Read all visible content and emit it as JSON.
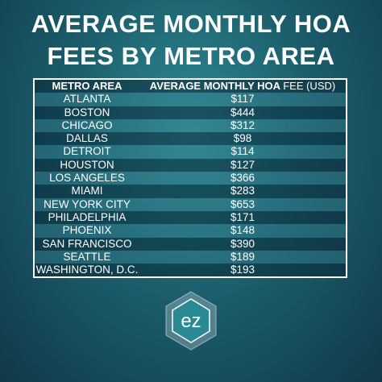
{
  "header": {
    "title_lines": [
      "AVERAGE MONTHLY HOA",
      "FEES BY METRO AREA"
    ]
  },
  "table": {
    "columns": [
      "METRO AREA",
      [
        "AVERAGE MONTHLY HOA",
        "FEE (USD)"
      ]
    ],
    "rows": [
      [
        "ATLANTA",
        "$117"
      ],
      [
        "BOSTON",
        "$444"
      ],
      [
        "CHICAGO",
        "$312"
      ],
      [
        "DALLAS",
        "$98"
      ],
      [
        "DETROIT",
        "$114"
      ],
      [
        "HOUSTON",
        "$127"
      ],
      [
        "LOS ANGELES",
        "$366"
      ],
      [
        "MIAMI",
        "$283"
      ],
      [
        "NEW YORK CITY",
        "$653"
      ],
      [
        "PHILADELPHIA",
        "$171"
      ],
      [
        "PHOENIX",
        "$148"
      ],
      [
        "SAN FRANCISCO",
        "$390"
      ],
      [
        "SEATTLE",
        "$189"
      ],
      [
        "WASHINGTON, D.C.",
        "$193"
      ]
    ]
  },
  "logo": {
    "text": "ez"
  }
}
